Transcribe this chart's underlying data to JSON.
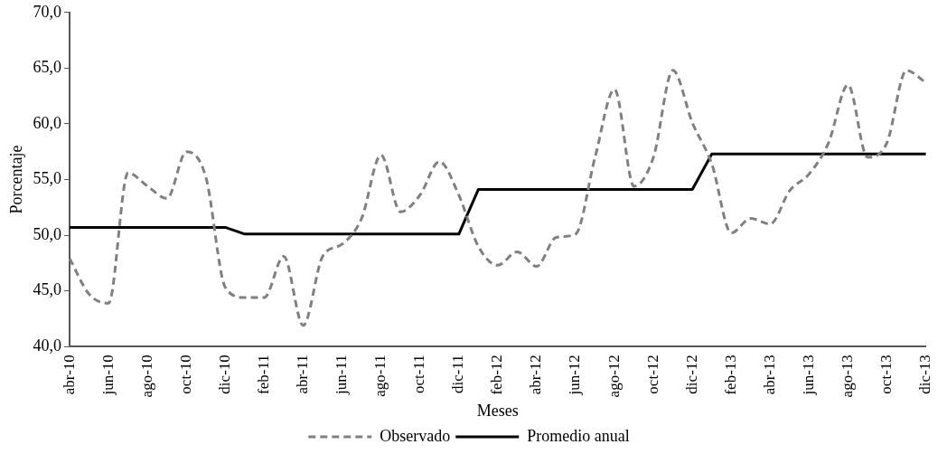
{
  "chart_data": {
    "type": "line",
    "xlabel": "Meses",
    "ylabel": "Porcentaje",
    "categories": [
      "abr-10",
      null,
      "jun-10",
      null,
      "ago-10",
      null,
      "oct-10",
      null,
      "dic-10",
      null,
      "feb-11",
      null,
      "abr-11",
      null,
      "jun-11",
      null,
      "ago-11",
      null,
      "oct-11",
      null,
      "dic-11",
      null,
      "feb-12",
      null,
      "abr-12",
      null,
      "jun-12",
      null,
      "ago-12",
      null,
      "oct-12",
      null,
      "dic-12",
      null,
      "feb-13",
      null,
      "abr-13",
      null,
      "jun-13",
      null,
      "ago-13",
      null,
      "oct-13",
      null,
      "dic-13"
    ],
    "series": [
      {
        "name": "Observado",
        "color": "#808080",
        "line_style": "dashed",
        "values": [
          47.9,
          44.7,
          43.9,
          55.6,
          54.4,
          53.3,
          57.5,
          55.2,
          45.3,
          44.4,
          44.4,
          48.1,
          41.9,
          48.1,
          49.2,
          51.5,
          57.2,
          52.1,
          53.6,
          56.6,
          53.6,
          49.0,
          47.3,
          48.5,
          47.2,
          49.8,
          50.1,
          57.0,
          63.1,
          54.4,
          57.0,
          64.8,
          60.1,
          56.4,
          50.2,
          51.5,
          51.0,
          54.0,
          55.5,
          58.3,
          63.5,
          57.0,
          58.3,
          64.8,
          63.7
        ]
      },
      {
        "name": "Promedio anual",
        "color": "#000000",
        "line_style": "solid",
        "values": [
          50.7,
          50.7,
          50.7,
          50.7,
          50.7,
          50.7,
          50.7,
          50.7,
          50.7,
          50.1,
          50.1,
          50.1,
          50.1,
          50.1,
          50.1,
          50.1,
          50.1,
          50.1,
          50.1,
          50.1,
          50.1,
          54.1,
          54.1,
          54.1,
          54.1,
          54.1,
          54.1,
          54.1,
          54.1,
          54.1,
          54.1,
          54.1,
          54.1,
          57.3,
          57.3,
          57.3,
          57.3,
          57.3,
          57.3,
          57.3,
          57.3,
          57.3,
          57.3,
          57.3,
          57.3
        ]
      }
    ],
    "ylim": [
      40,
      70
    ],
    "yticks": [
      {
        "value": 40,
        "label": "40,0"
      },
      {
        "value": 45,
        "label": "45,0"
      },
      {
        "value": 50,
        "label": "50,0"
      },
      {
        "value": 55,
        "label": "55,0"
      },
      {
        "value": 60,
        "label": "60,0"
      },
      {
        "value": 65,
        "label": "65,0"
      },
      {
        "value": 70,
        "label": "70,0"
      }
    ],
    "grid": false,
    "legend": "bottom",
    "marker": "none"
  }
}
